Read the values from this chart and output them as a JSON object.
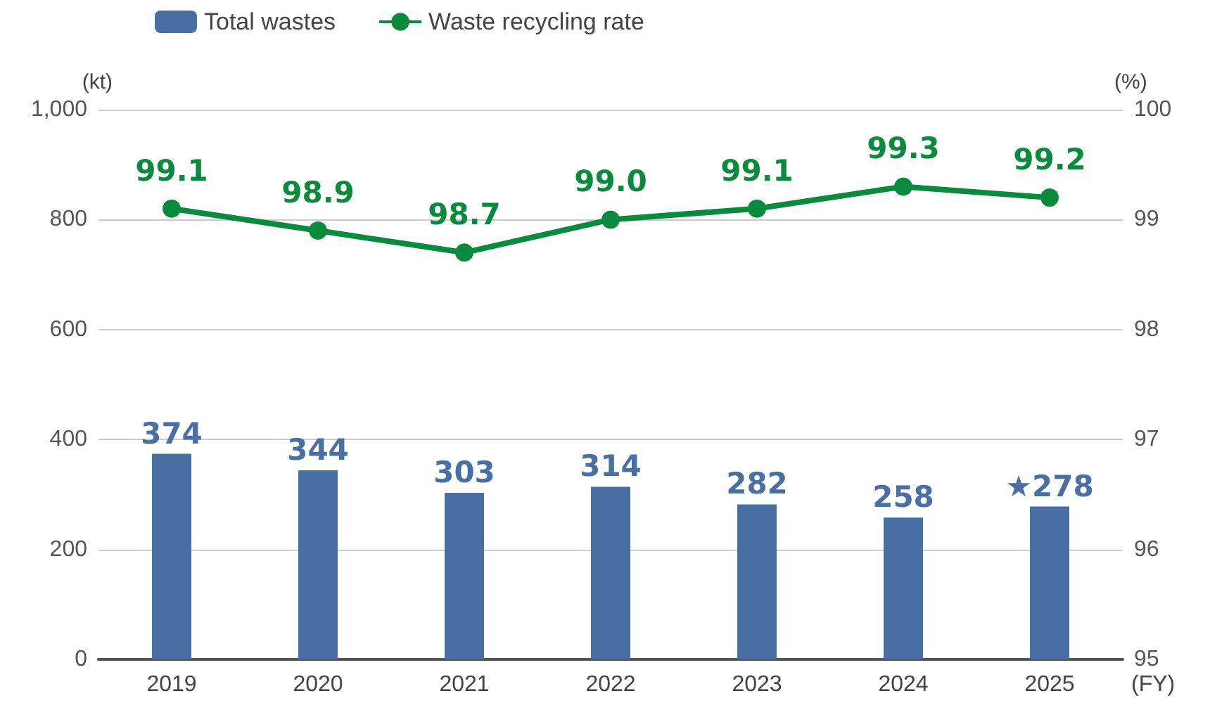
{
  "chart_data": {
    "type": "bar",
    "categories": [
      "2019",
      "2020",
      "2021",
      "2022",
      "2023",
      "2024",
      "2025"
    ],
    "xlabel": "(FY)",
    "ylabel": "(kt)",
    "y2label": "(%)",
    "series": [
      {
        "name": "Total wastes",
        "color": "#4a6fa5",
        "values": [
          374,
          344,
          303,
          314,
          282,
          258,
          278
        ],
        "value_labels": [
          "374",
          "344",
          "303",
          "314",
          "282",
          "258",
          "★278"
        ]
      },
      {
        "name": "Waste recycling rate",
        "type": "line",
        "axis": "y2",
        "color": "#0a8a3c",
        "marker": "circle",
        "values": [
          99.1,
          98.9,
          98.7,
          99.0,
          99.1,
          99.3,
          99.2
        ],
        "value_labels": [
          "99.1",
          "98.9",
          "98.7",
          "99.0",
          "99.1",
          "99.3",
          "99.2"
        ]
      }
    ],
    "ylim": [
      0,
      1000
    ],
    "yticks": [
      0,
      200,
      400,
      600,
      800,
      {
        "value": 1000,
        "label": "1,000"
      }
    ],
    "y2lim": [
      95,
      100
    ],
    "y2ticks": [
      95,
      96,
      97,
      98,
      99,
      100
    ],
    "grid": "y",
    "legend": "top left"
  }
}
